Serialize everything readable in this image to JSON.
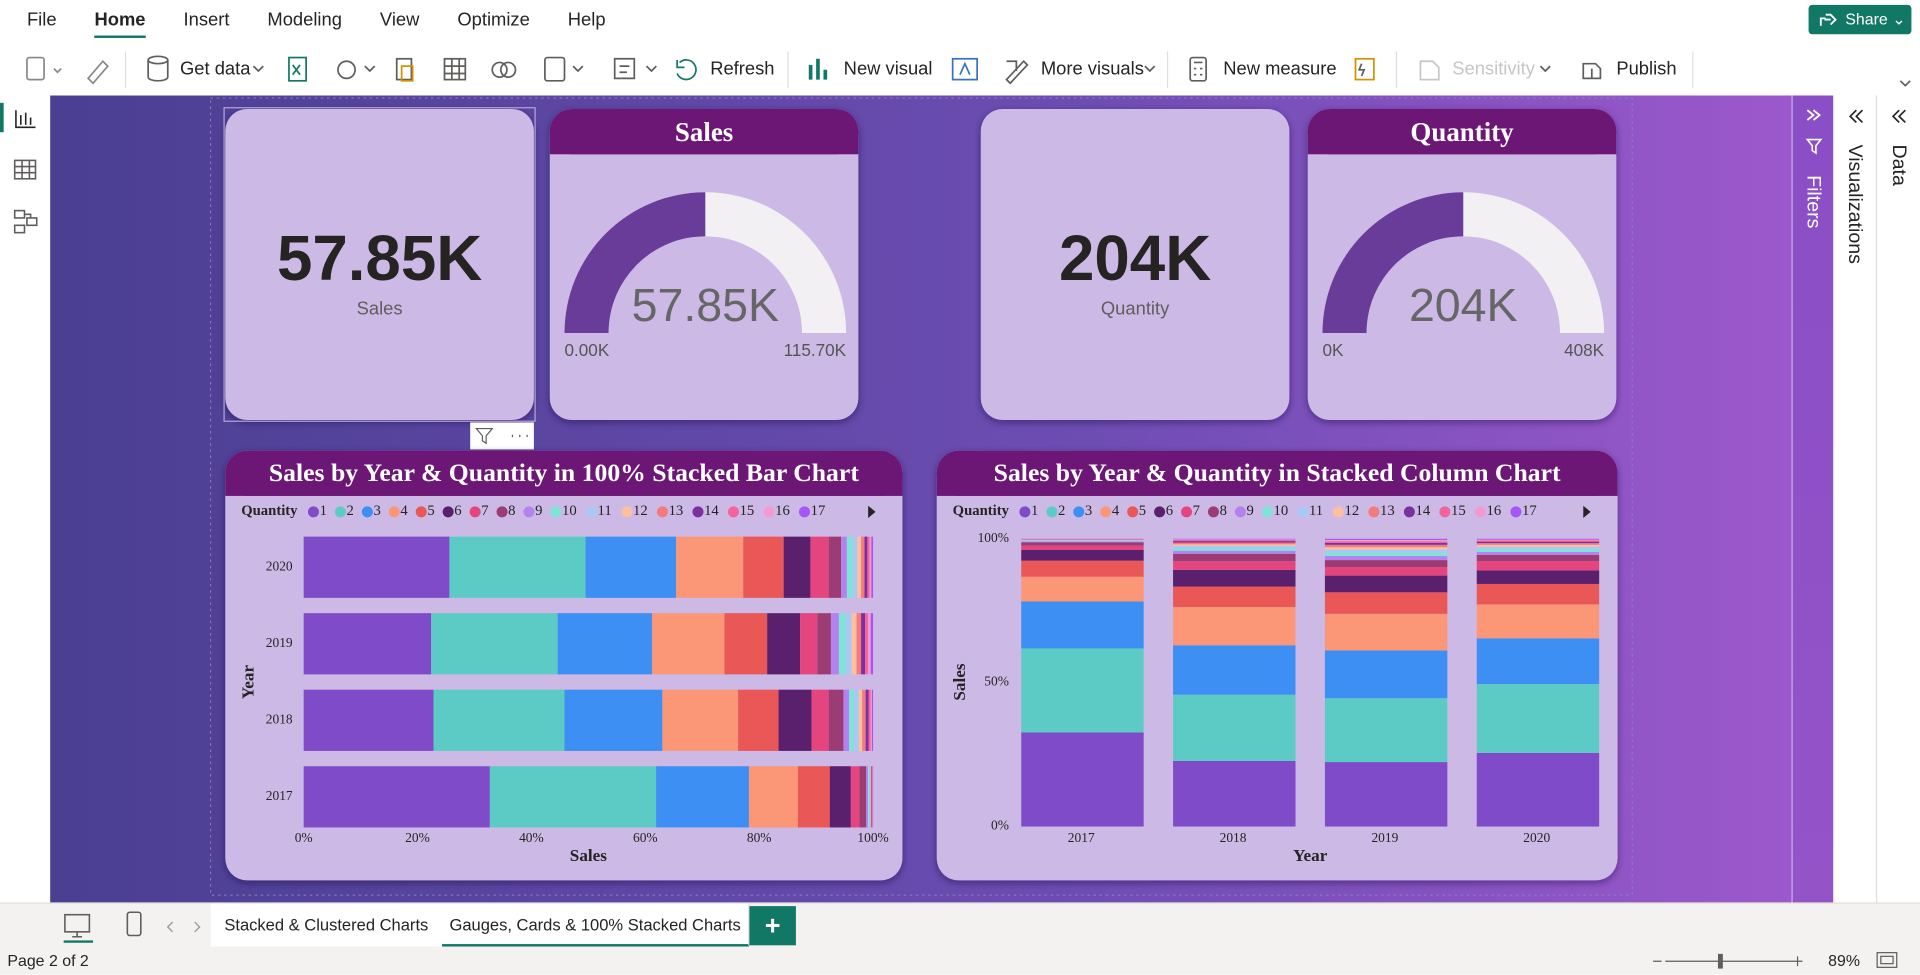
{
  "menu": {
    "items": [
      "File",
      "Home",
      "Insert",
      "Modeling",
      "View",
      "Optimize",
      "Help"
    ],
    "active_index": 1,
    "share": "Share"
  },
  "toolbar": {
    "get_data": "Get data",
    "refresh": "Refresh",
    "new_visual": "New visual",
    "more_visuals": "More visuals",
    "new_measure": "New measure",
    "sensitivity": "Sensitivity",
    "publish": "Publish"
  },
  "panes": {
    "filters": "Filters",
    "visualizations": "Visualizations",
    "data": "Data"
  },
  "cards": [
    {
      "value": "57.85K",
      "label": "Sales"
    },
    {
      "value": "204K",
      "label": "Quantity"
    }
  ],
  "gauges": [
    {
      "title": "Sales",
      "value": {
        "value": 57850,
        "label": "57.85K"
      },
      "min": {
        "value": 0,
        "label": "0.00K"
      },
      "max": {
        "value": 115700,
        "label": "115.70K"
      }
    },
    {
      "title": "Quantity",
      "value": {
        "value": 204000,
        "label": "204K"
      },
      "min": {
        "value": 0,
        "label": "0K"
      },
      "max": {
        "value": 408000,
        "label": "408K"
      }
    }
  ],
  "chart_data": [
    {
      "type": "bar",
      "orientation": "horizontal",
      "stacked": true,
      "title": "Sales by Year & Quantity in 100% Stacked Bar Chart",
      "legend_title": "Quantity",
      "x_label": "Sales",
      "y_label": "Year",
      "categories": [
        "2020",
        "2019",
        "2018",
        "2017"
      ],
      "xlim": [
        0,
        100
      ],
      "xticks": [
        {
          "value": 0,
          "label": "0%"
        },
        {
          "value": 20,
          "label": "20%"
        },
        {
          "value": 40,
          "label": "40%"
        },
        {
          "value": 60,
          "label": "60%"
        },
        {
          "value": 80,
          "label": "80%"
        },
        {
          "value": 100,
          "label": "100%"
        }
      ],
      "series": [
        {
          "name": "1",
          "color": "#7f4bc8",
          "values": [
            25.6,
            22.4,
            22.8,
            32.7
          ]
        },
        {
          "name": "2",
          "color": "#5dcbc5",
          "values": [
            23.9,
            22.2,
            23.0,
            29.2
          ]
        },
        {
          "name": "3",
          "color": "#3e8ff3",
          "values": [
            15.9,
            16.6,
            17.2,
            16.3
          ]
        },
        {
          "name": "4",
          "color": "#fb9677",
          "values": [
            11.8,
            12.7,
            13.3,
            8.6
          ]
        },
        {
          "name": "5",
          "color": "#e95757",
          "values": [
            7.1,
            7.5,
            7.1,
            5.6
          ]
        },
        {
          "name": "6",
          "color": "#5a1f6d",
          "values": [
            4.7,
            5.8,
            5.8,
            3.7
          ]
        },
        {
          "name": "7",
          "color": "#e5457e",
          "values": [
            3.2,
            3.0,
            3.0,
            1.5
          ]
        },
        {
          "name": "8",
          "color": "#9b3d74",
          "values": [
            2.2,
            2.4,
            2.6,
            1.2
          ]
        },
        {
          "name": "9",
          "color": "#b482ef",
          "values": [
            1.0,
            1.4,
            1.0,
            0.3
          ]
        },
        {
          "name": "10",
          "color": "#7fe3d6",
          "values": [
            1.0,
            1.2,
            0.9,
            0.2
          ]
        },
        {
          "name": "11",
          "color": "#a6c9f6",
          "values": [
            0.8,
            1.0,
            0.8,
            0.2
          ]
        },
        {
          "name": "12",
          "color": "#fdbf9f",
          "values": [
            0.7,
            0.9,
            0.6,
            0.1
          ]
        },
        {
          "name": "13",
          "color": "#f27b7b",
          "values": [
            0.6,
            0.8,
            0.6,
            0.1
          ]
        },
        {
          "name": "14",
          "color": "#7b2fa0",
          "values": [
            0.5,
            0.7,
            0.5,
            0.1
          ]
        },
        {
          "name": "15",
          "color": "#f2649b",
          "values": [
            0.4,
            0.5,
            0.4,
            0.1
          ]
        },
        {
          "name": "16",
          "color": "#f39bd0",
          "values": [
            0.3,
            0.5,
            0.2,
            0.05
          ]
        },
        {
          "name": "17",
          "color": "#a855f7",
          "values": [
            0.3,
            0.4,
            0.2,
            0.05
          ]
        }
      ]
    },
    {
      "type": "bar",
      "orientation": "vertical",
      "stacked": true,
      "title": "Sales by Year & Quantity in Stacked Column Chart",
      "legend_title": "Quantity",
      "x_label": "Year",
      "y_label": "Sales",
      "categories": [
        "2017",
        "2018",
        "2019",
        "2020"
      ],
      "ylim": [
        0,
        100
      ],
      "yticks": [
        {
          "value": 0,
          "label": "0%"
        },
        {
          "value": 50,
          "label": "50%"
        },
        {
          "value": 100,
          "label": "100%"
        }
      ],
      "series": [
        {
          "name": "1",
          "color": "#7f4bc8",
          "values": [
            32.7,
            22.8,
            22.4,
            25.6
          ]
        },
        {
          "name": "2",
          "color": "#5dcbc5",
          "values": [
            29.2,
            23.0,
            22.2,
            23.9
          ]
        },
        {
          "name": "3",
          "color": "#3e8ff3",
          "values": [
            16.3,
            17.2,
            16.6,
            15.9
          ]
        },
        {
          "name": "4",
          "color": "#fb9677",
          "values": [
            8.6,
            13.3,
            12.7,
            11.8
          ]
        },
        {
          "name": "5",
          "color": "#e95757",
          "values": [
            5.6,
            7.1,
            7.5,
            7.1
          ]
        },
        {
          "name": "6",
          "color": "#5a1f6d",
          "values": [
            3.7,
            5.8,
            5.8,
            4.7
          ]
        },
        {
          "name": "7",
          "color": "#e5457e",
          "values": [
            1.5,
            3.0,
            3.0,
            3.2
          ]
        },
        {
          "name": "8",
          "color": "#9b3d74",
          "values": [
            1.2,
            2.6,
            2.4,
            2.2
          ]
        },
        {
          "name": "9",
          "color": "#b482ef",
          "values": [
            0.3,
            1.0,
            1.4,
            1.0
          ]
        },
        {
          "name": "10",
          "color": "#7fe3d6",
          "values": [
            0.2,
            0.9,
            1.2,
            1.0
          ]
        },
        {
          "name": "11",
          "color": "#a6c9f6",
          "values": [
            0.2,
            0.8,
            1.0,
            0.8
          ]
        },
        {
          "name": "12",
          "color": "#fdbf9f",
          "values": [
            0.1,
            0.6,
            0.9,
            0.7
          ]
        },
        {
          "name": "13",
          "color": "#f27b7b",
          "values": [
            0.1,
            0.6,
            0.8,
            0.6
          ]
        },
        {
          "name": "14",
          "color": "#7b2fa0",
          "values": [
            0.1,
            0.5,
            0.7,
            0.5
          ]
        },
        {
          "name": "15",
          "color": "#f2649b",
          "values": [
            0.1,
            0.4,
            0.5,
            0.4
          ]
        },
        {
          "name": "16",
          "color": "#f39bd0",
          "values": [
            0.05,
            0.2,
            0.5,
            0.3
          ]
        },
        {
          "name": "17",
          "color": "#a855f7",
          "values": [
            0.05,
            0.2,
            0.4,
            0.3
          ]
        }
      ]
    }
  ],
  "pages": {
    "tabs": [
      "Stacked & Clustered Charts",
      "Gauges, Cards & 100% Stacked Charts"
    ],
    "active_index": 1
  },
  "status": {
    "page": "Page 2 of 2",
    "zoom": "89%"
  }
}
